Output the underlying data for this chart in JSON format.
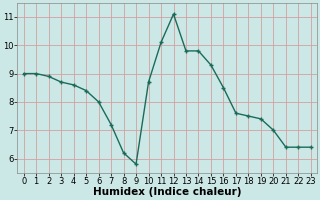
{
  "x": [
    0,
    1,
    2,
    3,
    4,
    5,
    6,
    7,
    8,
    9,
    10,
    11,
    12,
    13,
    14,
    15,
    16,
    17,
    18,
    19,
    20,
    21,
    22,
    23
  ],
  "y": [
    9.0,
    9.0,
    8.9,
    8.7,
    8.6,
    8.4,
    8.0,
    7.2,
    6.2,
    5.8,
    8.7,
    10.1,
    11.1,
    9.8,
    9.8,
    9.3,
    8.5,
    7.6,
    7.5,
    7.4,
    7.0,
    6.4,
    6.4,
    6.4
  ],
  "xlabel": "Humidex (Indice chaleur)",
  "xlim": [
    -0.5,
    23.5
  ],
  "ylim": [
    5.5,
    11.5
  ],
  "yticks": [
    6,
    7,
    8,
    9,
    10,
    11
  ],
  "xticks": [
    0,
    1,
    2,
    3,
    4,
    5,
    6,
    7,
    8,
    9,
    10,
    11,
    12,
    13,
    14,
    15,
    16,
    17,
    18,
    19,
    20,
    21,
    22,
    23
  ],
  "line_color": "#1a6b5a",
  "marker": "+",
  "marker_size": 3,
  "bg_color": "#cce8e6",
  "grid_major_color": "#b0d0ce",
  "grid_minor_color": "#c5e0de",
  "tick_label_fontsize": 6,
  "xlabel_fontsize": 7.5,
  "linewidth": 1.0
}
